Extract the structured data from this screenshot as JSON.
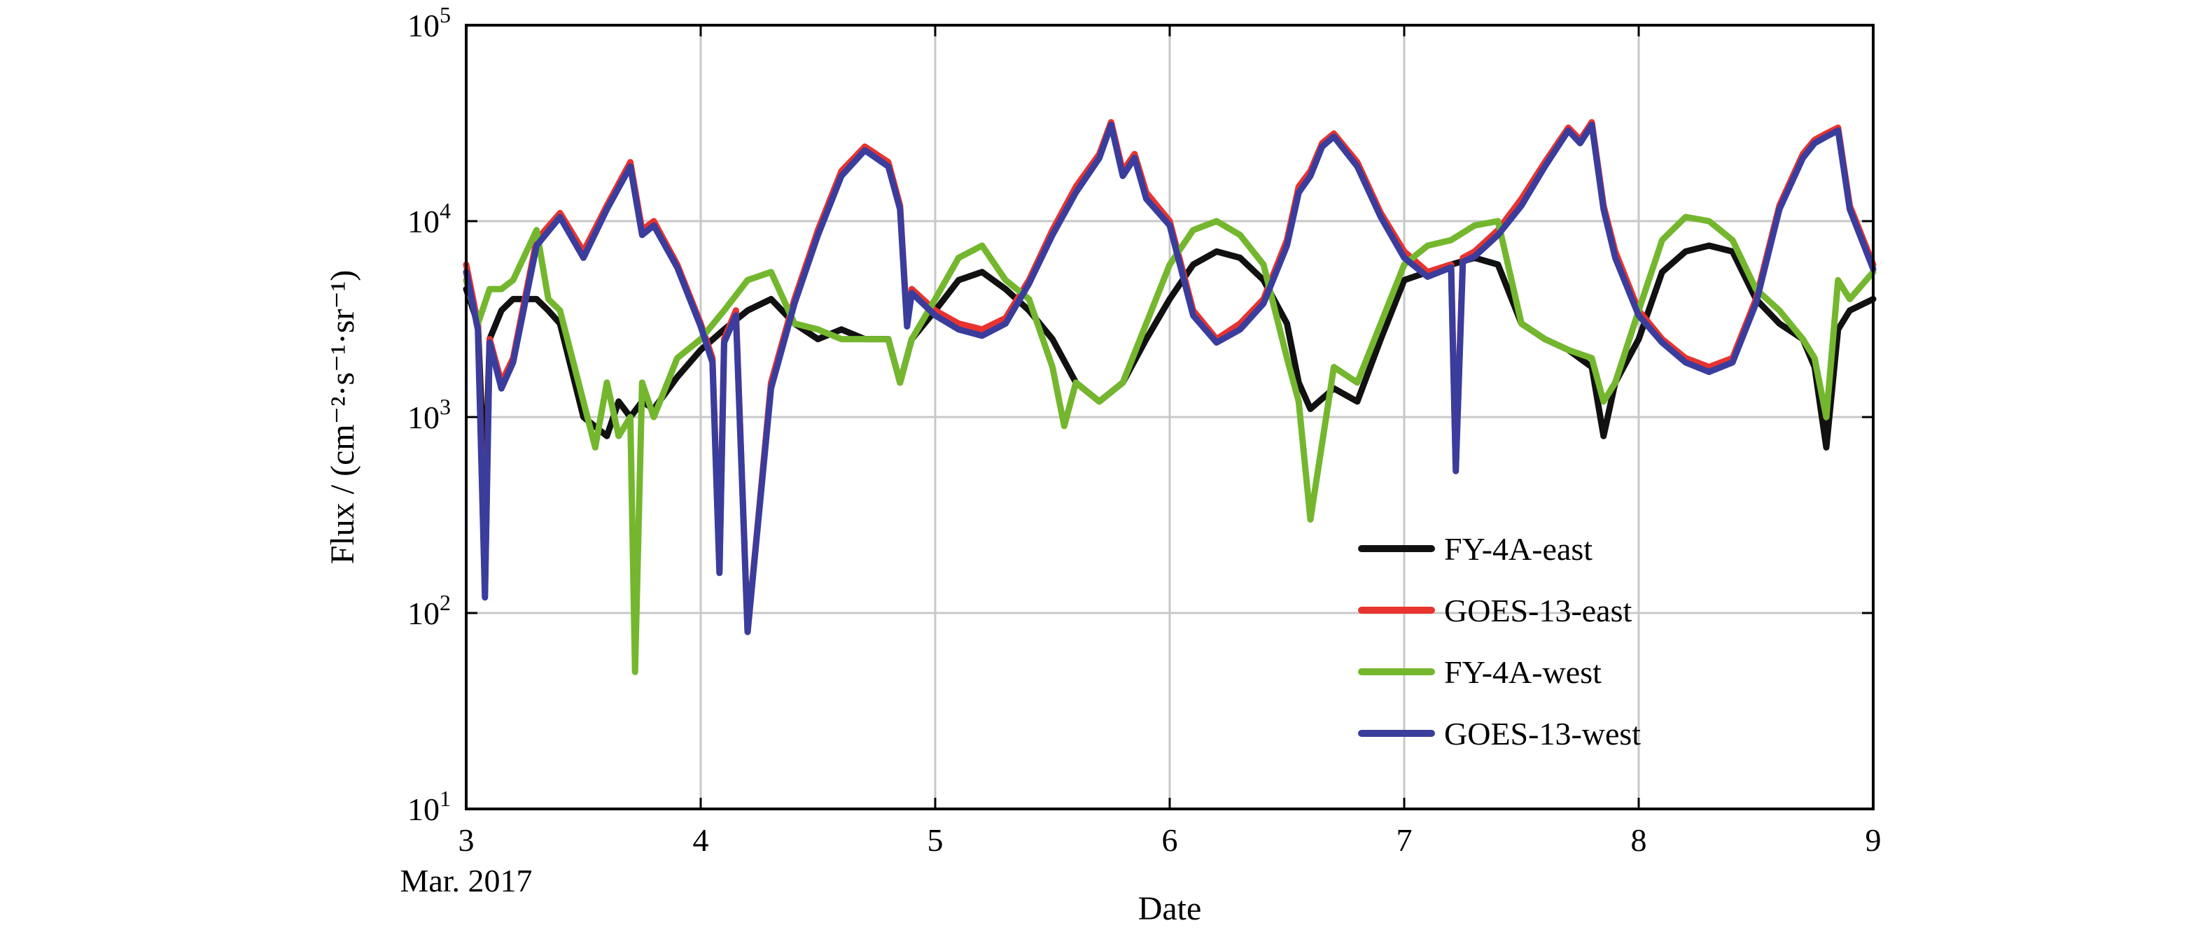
{
  "chart_data": {
    "type": "line",
    "xlabel": "Date",
    "ylabel": "Flux / (cm⁻²·s⁻¹·sr⁻¹)",
    "x_origin_label": "Mar. 2017",
    "x_unit": "day of March 2017",
    "xlim": [
      3,
      9
    ],
    "ylim": [
      10,
      100000
    ],
    "y_scale": "log",
    "grid": true,
    "legend_position": "bottom-right",
    "x_ticks": [
      {
        "value": 3,
        "label": "3"
      },
      {
        "value": 4,
        "label": "4"
      },
      {
        "value": 5,
        "label": "5"
      },
      {
        "value": 6,
        "label": "6"
      },
      {
        "value": 7,
        "label": "7"
      },
      {
        "value": 8,
        "label": "8"
      },
      {
        "value": 9,
        "label": "9"
      }
    ],
    "y_ticks": [
      {
        "value": 10,
        "base": "10",
        "exp": "1"
      },
      {
        "value": 100,
        "base": "10",
        "exp": "2"
      },
      {
        "value": 1000,
        "base": "10",
        "exp": "3"
      },
      {
        "value": 10000,
        "base": "10",
        "exp": "4"
      },
      {
        "value": 100000,
        "base": "10",
        "exp": "5"
      }
    ],
    "series": [
      {
        "name": "FY-4A-east",
        "color": "#111111",
        "x": [
          3.0,
          3.05,
          3.08,
          3.1,
          3.15,
          3.2,
          3.3,
          3.35,
          3.4,
          3.5,
          3.6,
          3.65,
          3.7,
          3.75,
          3.8,
          3.9,
          4.0,
          4.1,
          4.2,
          4.3,
          4.4,
          4.5,
          4.6,
          4.7,
          4.8,
          4.85,
          4.9,
          5.0,
          5.1,
          5.2,
          5.3,
          5.4,
          5.5,
          5.6,
          5.7,
          5.8,
          5.9,
          6.0,
          6.1,
          6.2,
          6.3,
          6.4,
          6.5,
          6.55,
          6.6,
          6.7,
          6.8,
          6.9,
          7.0,
          7.1,
          7.2,
          7.3,
          7.4,
          7.5,
          7.6,
          7.7,
          7.8,
          7.85,
          7.9,
          8.0,
          8.1,
          8.2,
          8.3,
          8.4,
          8.5,
          8.6,
          8.7,
          8.75,
          8.8,
          8.85,
          8.9,
          9.0
        ],
        "y": [
          4500,
          3000,
          400,
          2500,
          3500,
          4000,
          4000,
          3500,
          3000,
          1000,
          800,
          1200,
          1000,
          1200,
          1100,
          1600,
          2200,
          2800,
          3500,
          4000,
          3000,
          2500,
          2800,
          2500,
          2500,
          1500,
          2500,
          3500,
          5000,
          5500,
          4500,
          3500,
          2500,
          1500,
          1200,
          1500,
          2500,
          4000,
          6000,
          7000,
          6500,
          5000,
          3000,
          1500,
          1100,
          1400,
          1200,
          2500,
          5000,
          5500,
          6000,
          6500,
          6000,
          3000,
          2500,
          2200,
          1800,
          800,
          1500,
          2500,
          5500,
          7000,
          7500,
          7000,
          4000,
          3000,
          2500,
          1800,
          700,
          2800,
          3500,
          4000
        ]
      },
      {
        "name": "GOES-13-east",
        "color": "#e8332f",
        "x": [
          3.0,
          3.05,
          3.08,
          3.1,
          3.15,
          3.2,
          3.3,
          3.4,
          3.5,
          3.6,
          3.7,
          3.75,
          3.8,
          3.9,
          4.0,
          4.05,
          4.08,
          4.1,
          4.15,
          4.2,
          4.3,
          4.4,
          4.5,
          4.6,
          4.7,
          4.8,
          4.85,
          4.88,
          4.9,
          5.0,
          5.1,
          5.2,
          5.3,
          5.4,
          5.5,
          5.6,
          5.7,
          5.75,
          5.8,
          5.85,
          5.9,
          6.0,
          6.1,
          6.2,
          6.3,
          6.4,
          6.5,
          6.55,
          6.6,
          6.65,
          6.7,
          6.8,
          6.9,
          7.0,
          7.1,
          7.2,
          7.22,
          7.25,
          7.3,
          7.4,
          7.5,
          7.6,
          7.7,
          7.75,
          7.8,
          7.85,
          7.9,
          8.0,
          8.1,
          8.2,
          8.3,
          8.4,
          8.5,
          8.6,
          8.7,
          8.75,
          8.8,
          8.85,
          8.9,
          9.0
        ],
        "y": [
          6000,
          3000,
          130,
          2500,
          1500,
          2000,
          8000,
          11000,
          7000,
          12000,
          20000,
          9000,
          10000,
          6000,
          3000,
          2000,
          170,
          2500,
          3500,
          80,
          1500,
          4000,
          9000,
          18000,
          24000,
          20000,
          12000,
          3000,
          4500,
          3500,
          3000,
          2800,
          3200,
          5000,
          9000,
          15000,
          22000,
          32000,
          18000,
          22000,
          14000,
          10000,
          3500,
          2500,
          3000,
          4000,
          8000,
          15000,
          18000,
          25000,
          28000,
          20000,
          11000,
          7000,
          5500,
          6000,
          550,
          6500,
          7000,
          9000,
          13000,
          20000,
          30000,
          26000,
          32000,
          12000,
          7000,
          3500,
          2500,
          2000,
          1800,
          2000,
          4000,
          12000,
          22000,
          26000,
          28000,
          30000,
          12000,
          6000
        ]
      },
      {
        "name": "FY-4A-west",
        "color": "#74b72e",
        "x": [
          3.0,
          3.05,
          3.1,
          3.15,
          3.2,
          3.3,
          3.35,
          3.4,
          3.5,
          3.55,
          3.6,
          3.65,
          3.7,
          3.72,
          3.75,
          3.8,
          3.9,
          4.0,
          4.1,
          4.2,
          4.3,
          4.4,
          4.5,
          4.6,
          4.7,
          4.8,
          4.85,
          4.9,
          5.0,
          5.1,
          5.2,
          5.3,
          5.4,
          5.5,
          5.55,
          5.6,
          5.7,
          5.8,
          5.9,
          6.0,
          6.1,
          6.2,
          6.3,
          6.4,
          6.5,
          6.55,
          6.6,
          6.7,
          6.8,
          6.9,
          7.0,
          7.1,
          7.2,
          7.3,
          7.4,
          7.5,
          7.6,
          7.7,
          7.8,
          7.85,
          7.9,
          8.0,
          8.1,
          8.2,
          8.3,
          8.4,
          8.5,
          8.6,
          8.7,
          8.75,
          8.8,
          8.85,
          8.9,
          9.0
        ],
        "y": [
          5000,
          3000,
          4500,
          4500,
          5000,
          9000,
          4000,
          3500,
          1200,
          700,
          1500,
          800,
          1000,
          50,
          1500,
          1000,
          2000,
          2500,
          3500,
          5000,
          5500,
          3000,
          2800,
          2500,
          2500,
          2500,
          1500,
          2500,
          4000,
          6500,
          7500,
          5000,
          4000,
          1800,
          900,
          1500,
          1200,
          1500,
          3000,
          6000,
          9000,
          10000,
          8500,
          6000,
          2000,
          1200,
          300,
          1800,
          1500,
          3000,
          6000,
          7500,
          8000,
          9500,
          10000,
          3000,
          2500,
          2200,
          2000,
          1200,
          1500,
          3500,
          8000,
          10500,
          10000,
          8000,
          4500,
          3500,
          2500,
          2000,
          1000,
          5000,
          4000,
          5500
        ]
      },
      {
        "name": "GOES-13-west",
        "color": "#3a3d9c",
        "x": [
          3.0,
          3.05,
          3.08,
          3.1,
          3.15,
          3.2,
          3.3,
          3.4,
          3.5,
          3.6,
          3.7,
          3.75,
          3.8,
          3.9,
          4.0,
          4.05,
          4.08,
          4.1,
          4.15,
          4.2,
          4.3,
          4.4,
          4.5,
          4.6,
          4.7,
          4.8,
          4.85,
          4.88,
          4.9,
          5.0,
          5.1,
          5.2,
          5.3,
          5.4,
          5.5,
          5.6,
          5.7,
          5.75,
          5.8,
          5.85,
          5.9,
          6.0,
          6.1,
          6.2,
          6.3,
          6.4,
          6.5,
          6.55,
          6.6,
          6.65,
          6.7,
          6.8,
          6.9,
          7.0,
          7.1,
          7.2,
          7.22,
          7.25,
          7.3,
          7.4,
          7.5,
          7.6,
          7.7,
          7.75,
          7.8,
          7.85,
          7.9,
          8.0,
          8.1,
          8.2,
          8.3,
          8.4,
          8.5,
          8.6,
          8.7,
          8.75,
          8.8,
          8.85,
          8.9,
          9.0
        ],
        "y": [
          5500,
          2800,
          120,
          2400,
          1400,
          1900,
          7500,
          10500,
          6500,
          11500,
          19000,
          8500,
          9500,
          5800,
          2900,
          1900,
          160,
          2400,
          3300,
          80,
          1400,
          3800,
          8500,
          17000,
          23000,
          19000,
          11500,
          2900,
          4300,
          3300,
          2800,
          2600,
          3000,
          4800,
          8500,
          14000,
          21000,
          31000,
          17000,
          21000,
          13000,
          9500,
          3300,
          2400,
          2800,
          3800,
          7500,
          14000,
          17000,
          24000,
          27000,
          19000,
          10500,
          6500,
          5200,
          5800,
          530,
          6200,
          6600,
          8500,
          12000,
          19000,
          29000,
          25000,
          31000,
          11500,
          6500,
          3300,
          2400,
          1900,
          1700,
          1900,
          3800,
          11500,
          21000,
          25000,
          27000,
          29000,
          11500,
          5700
        ]
      }
    ]
  }
}
